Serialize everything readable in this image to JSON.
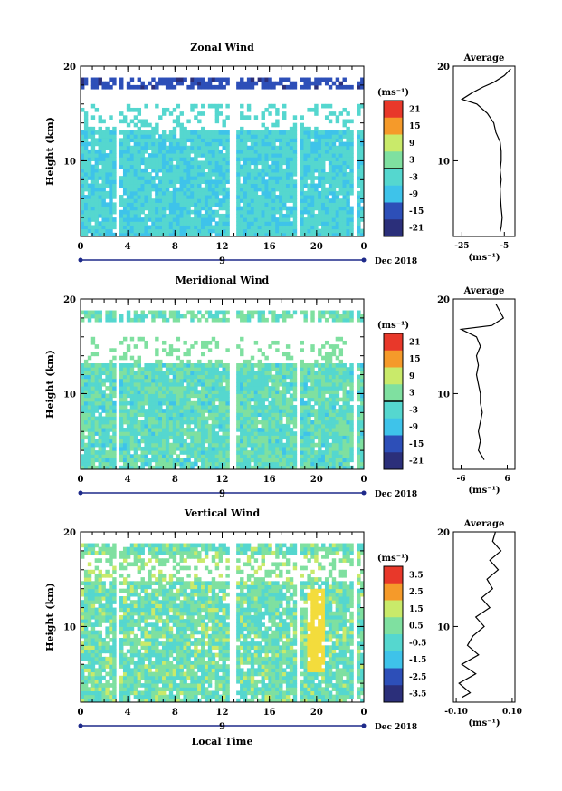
{
  "figure": {
    "date_label": "Dec 2018",
    "x_title": "Local Time"
  },
  "chart_data": [
    {
      "type": "heatmap",
      "title": "Zonal Wind",
      "ylabel": "Height (km)",
      "xlabel": "Local Time",
      "x_ticks": [
        "0",
        "4",
        "8",
        "12",
        "16",
        "20",
        "0"
      ],
      "day_label": "9",
      "xlim": [
        0,
        24
      ],
      "ylim": [
        2,
        20
      ],
      "y_ticks": [
        "20",
        "10"
      ],
      "colorbar": {
        "unit": "(ms⁻¹)",
        "labels": [
          "21",
          "15",
          "9",
          "3",
          "-3",
          "-9",
          "-15",
          "-21"
        ],
        "range": [
          -24,
          24
        ]
      },
      "average": {
        "title": "Average",
        "unit": "(ms⁻¹)",
        "xlim": [
          -29,
          0
        ],
        "x_ticks": [
          "-25",
          "-5"
        ],
        "profile": [
          [
            -7,
            2.5
          ],
          [
            -6.5,
            3
          ],
          [
            -6,
            4
          ],
          [
            -6.5,
            5
          ],
          [
            -6.8,
            6
          ],
          [
            -7,
            7
          ],
          [
            -6.5,
            8
          ],
          [
            -7,
            9
          ],
          [
            -6.5,
            10
          ],
          [
            -6.5,
            11
          ],
          [
            -7,
            12
          ],
          [
            -9,
            13
          ],
          [
            -10,
            14
          ],
          [
            -13,
            15
          ],
          [
            -18,
            16
          ],
          [
            -25,
            16.5
          ],
          [
            -20,
            17.2
          ],
          [
            -15,
            17.8
          ],
          [
            -10,
            18.3
          ],
          [
            -5,
            19
          ],
          [
            -2,
            19.7
          ]
        ]
      }
    },
    {
      "type": "heatmap",
      "title": "Meridional Wind",
      "ylabel": "Height (km)",
      "xlabel": "Local Time",
      "x_ticks": [
        "0",
        "4",
        "8",
        "12",
        "16",
        "20",
        "0"
      ],
      "day_label": "9",
      "xlim": [
        0,
        24
      ],
      "ylim": [
        2,
        20
      ],
      "y_ticks": [
        "20",
        "10"
      ],
      "colorbar": {
        "unit": "(ms⁻¹)",
        "labels": [
          "21",
          "15",
          "9",
          "3",
          "-3",
          "-9",
          "-15",
          "-21"
        ],
        "range": [
          -24,
          24
        ]
      },
      "average": {
        "title": "Average",
        "unit": "(ms⁻¹)",
        "xlim": [
          -8,
          8
        ],
        "x_ticks": [
          "-6",
          "6"
        ],
        "profile": [
          [
            0,
            3
          ],
          [
            -1.5,
            4
          ],
          [
            -1,
            5
          ],
          [
            -1.5,
            6
          ],
          [
            -1,
            7
          ],
          [
            -0.5,
            8
          ],
          [
            -1,
            9
          ],
          [
            -1,
            10
          ],
          [
            -1.5,
            11
          ],
          [
            -2,
            12
          ],
          [
            -1.5,
            13
          ],
          [
            -2,
            14
          ],
          [
            -1,
            15
          ],
          [
            -2,
            16
          ],
          [
            -6,
            16.8
          ],
          [
            2,
            17.2
          ],
          [
            5,
            18
          ],
          [
            3,
            19.5
          ]
        ]
      }
    },
    {
      "type": "heatmap",
      "title": "Vertical Wind",
      "ylabel": "Height (km)",
      "xlabel": "Local Time",
      "x_ticks": [
        "0",
        "4",
        "8",
        "12",
        "16",
        "20",
        "0"
      ],
      "day_label": "9",
      "xlim": [
        0,
        24
      ],
      "ylim": [
        2,
        20
      ],
      "y_ticks": [
        "20",
        "10"
      ],
      "colorbar": {
        "unit": "(ms⁻¹)",
        "labels": [
          "3.5",
          "2.5",
          "1.5",
          "0.5",
          "-0.5",
          "-1.5",
          "-2.5",
          "-3.5"
        ],
        "range": [
          -4,
          4
        ]
      },
      "average": {
        "title": "Average",
        "unit": "(ms⁻¹)",
        "xlim": [
          -0.11,
          0.11
        ],
        "x_ticks": [
          "-0.10",
          "0.10"
        ],
        "profile": [
          [
            -0.08,
            2.5
          ],
          [
            -0.05,
            3
          ],
          [
            -0.09,
            4
          ],
          [
            -0.03,
            5
          ],
          [
            -0.08,
            6
          ],
          [
            -0.02,
            7
          ],
          [
            -0.06,
            8
          ],
          [
            -0.04,
            9
          ],
          [
            0.0,
            10
          ],
          [
            -0.03,
            11
          ],
          [
            0.02,
            12
          ],
          [
            -0.01,
            13
          ],
          [
            0.03,
            14
          ],
          [
            0.01,
            15
          ],
          [
            0.05,
            16
          ],
          [
            0.02,
            17
          ],
          [
            0.06,
            18
          ],
          [
            0.03,
            19
          ],
          [
            0.04,
            20
          ]
        ]
      }
    }
  ]
}
